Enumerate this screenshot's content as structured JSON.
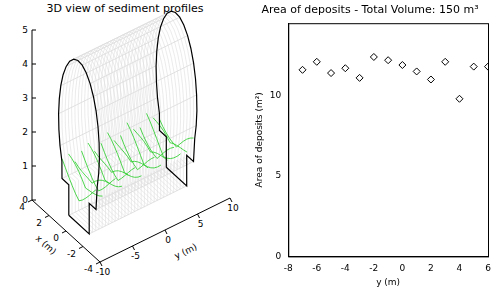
{
  "chart_data": [
    {
      "type": "surface3d",
      "title": "3D view of sediment profiles",
      "xlabel": "x (m)",
      "ylabel": "y (m)",
      "xlim": [
        -4,
        4
      ],
      "xticks": [
        -4,
        -2,
        0,
        2,
        4
      ],
      "ylim": [
        -10,
        10
      ],
      "yticks": [
        -10,
        -5,
        0,
        5,
        10
      ],
      "zlim": [
        0,
        5
      ],
      "zticks": [
        0,
        1,
        2,
        3,
        4,
        5
      ],
      "color": "#22cc22"
    },
    {
      "type": "scatter",
      "title": "Area of deposits - Total Volume: 150 m³",
      "xlabel": "y (m)",
      "ylabel": "Area of deposits (m²)",
      "x": [
        -7,
        -6,
        -5,
        -4,
        -3,
        -2,
        -1,
        0,
        1,
        2,
        3,
        4,
        5,
        6
      ],
      "values": [
        11.6,
        12.1,
        11.4,
        11.7,
        11.1,
        12.4,
        12.2,
        11.9,
        11.5,
        11.0,
        12.1,
        9.8,
        11.8,
        11.8
      ],
      "xlim": [
        -8,
        6
      ],
      "xticks": [
        -8,
        -6,
        -4,
        -2,
        0,
        2,
        4,
        6
      ],
      "ylim": [
        0,
        14.5
      ],
      "yticks": [
        0,
        5,
        10
      ],
      "color": "#000000",
      "marker": "diamond",
      "grid": false
    }
  ]
}
